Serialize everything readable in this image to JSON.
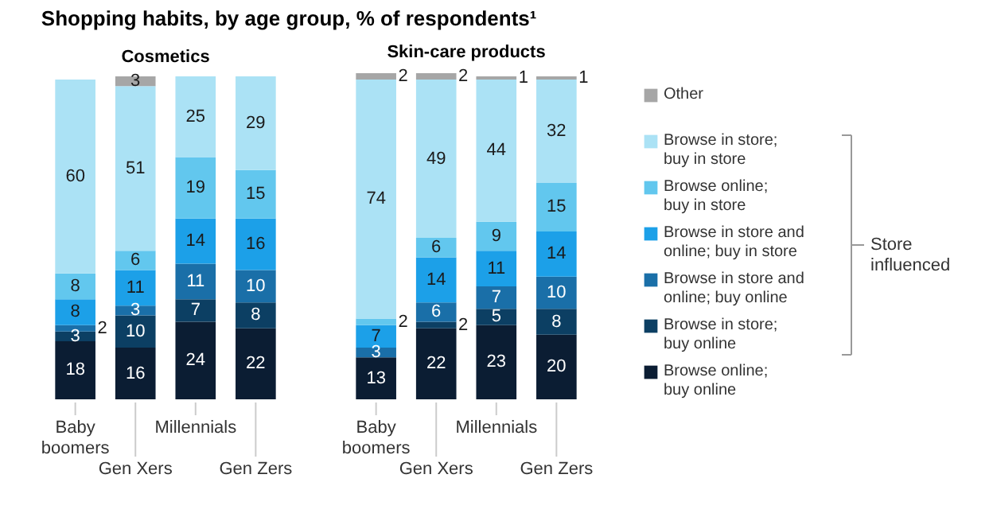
{
  "chart_data": [
    {
      "type": "bar",
      "title": "Shopping habits, by age group, % of respondents¹",
      "subtitle": "Cosmetics",
      "stacked": true,
      "data_labels": true,
      "tick_labels": "x",
      "ylim": [
        0,
        101
      ],
      "legend": "right",
      "annotations": [
        "Store influenced"
      ],
      "categories": [
        "Baby boomers",
        "Gen Xers",
        "Millennials",
        "Gen Zers"
      ],
      "series": [
        {
          "name": "Browse online; buy online",
          "color": "#0b1d33",
          "values": [
            18,
            16,
            24,
            22
          ]
        },
        {
          "name": "Browse in store; buy online",
          "color": "#0c3f63",
          "values": [
            3,
            10,
            7,
            8
          ]
        },
        {
          "name": "Browse in store and online; buy online",
          "color": "#1a6fa8",
          "values": [
            2,
            3,
            11,
            10
          ]
        },
        {
          "name": "Browse in store and online; buy in store",
          "color": "#1ca0e8",
          "values": [
            8,
            11,
            14,
            16
          ]
        },
        {
          "name": "Browse online; buy in store",
          "color": "#62c7ee",
          "values": [
            8,
            6,
            19,
            15
          ]
        },
        {
          "name": "Browse in store; buy in store",
          "color": "#abe2f5",
          "values": [
            60,
            51,
            25,
            29
          ]
        },
        {
          "name": "Other",
          "color": "#a6a6a6",
          "values": [
            null,
            3,
            null,
            null
          ]
        }
      ]
    },
    {
      "type": "bar",
      "subtitle": "Skin-care products",
      "stacked": true,
      "data_labels": true,
      "tick_labels": "x",
      "ylim": [
        0,
        101
      ],
      "categories": [
        "Baby boomers",
        "Gen Xers",
        "Millennials",
        "Gen Zers"
      ],
      "series": [
        {
          "color": "#0b1d33",
          "values": [
            13,
            22,
            23,
            20
          ]
        },
        {
          "color": "#0c3f63",
          "values": [
            null,
            2,
            5,
            8
          ]
        },
        {
          "color": "#1a6fa8",
          "values": [
            3,
            6,
            7,
            10
          ]
        },
        {
          "color": "#1ca0e8",
          "values": [
            7,
            14,
            11,
            14
          ]
        },
        {
          "color": "#62c7ee",
          "values": [
            2,
            6,
            9,
            15
          ]
        },
        {
          "color": "#abe2f5",
          "values": [
            74,
            49,
            44,
            32
          ]
        },
        {
          "color": "#a6a6a6",
          "values": [
            2,
            2,
            1,
            1
          ]
        }
      ]
    }
  ]
}
